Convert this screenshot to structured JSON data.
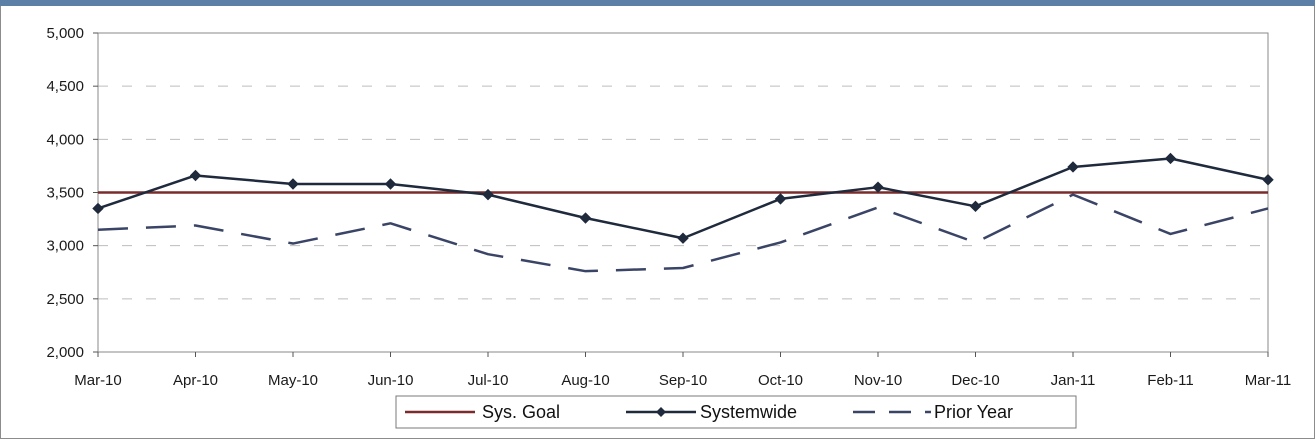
{
  "chart_data": {
    "type": "line",
    "categories": [
      "Mar-10",
      "Apr-10",
      "May-10",
      "Jun-10",
      "Jul-10",
      "Aug-10",
      "Sep-10",
      "Oct-10",
      "Nov-10",
      "Dec-10",
      "Jan-11",
      "Feb-11",
      "Mar-11"
    ],
    "ylim": [
      2000,
      5000
    ],
    "yticks": [
      2000,
      2500,
      3000,
      3500,
      4000,
      4500,
      5000
    ],
    "ytick_labels": [
      "2,000",
      "2,500",
      "3,000",
      "3,500",
      "4,000",
      "4,500",
      "5,000"
    ],
    "grid": true,
    "legend_position": "bottom",
    "series": [
      {
        "name": "Sys. Goal",
        "style": "solid",
        "marker": "none",
        "color": "#7a2c2c",
        "values": [
          3500,
          3500,
          3500,
          3500,
          3500,
          3500,
          3500,
          3500,
          3500,
          3500,
          3500,
          3500,
          3500
        ]
      },
      {
        "name": "Systemwide",
        "style": "solid",
        "marker": "diamond",
        "color": "#1f2a3d",
        "values": [
          3350,
          3660,
          3580,
          3580,
          3480,
          3260,
          3070,
          3440,
          3550,
          3370,
          3740,
          3820,
          3620
        ]
      },
      {
        "name": "Prior Year",
        "style": "dashed",
        "marker": "none",
        "color": "#3a4466",
        "values": [
          3150,
          3190,
          3020,
          3210,
          2920,
          2760,
          2790,
          3030,
          3360,
          3030,
          3480,
          3110,
          3350
        ]
      }
    ]
  }
}
